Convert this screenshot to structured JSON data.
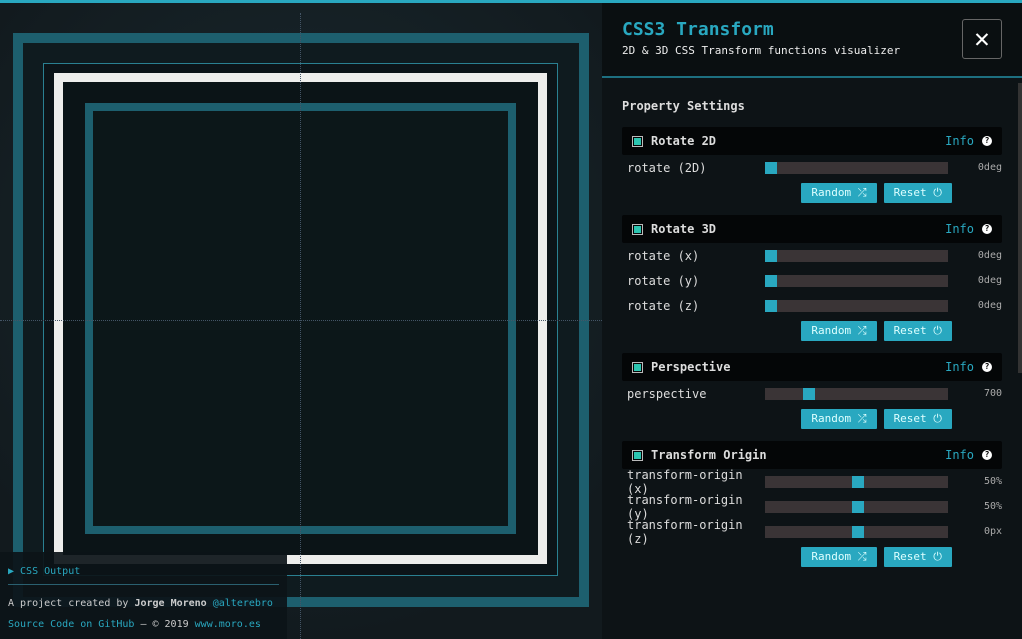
{
  "panel": {
    "title": "CSS3 Transform",
    "subtitle": "2D & 3D CSS Transform functions visualizer",
    "close": "✕",
    "settings_title": "Property Settings"
  },
  "sections": [
    {
      "title": "Rotate 2D",
      "info": "Info",
      "rows": [
        {
          "label": "rotate (2D)",
          "value": "0deg",
          "fraction": 0
        }
      ],
      "random": "Random ⤮",
      "reset": "Reset ⏻"
    },
    {
      "title": "Rotate 3D",
      "info": "Info",
      "rows": [
        {
          "label": "rotate (x)",
          "value": "0deg",
          "fraction": 0
        },
        {
          "label": "rotate (y)",
          "value": "0deg",
          "fraction": 0
        },
        {
          "label": "rotate (z)",
          "value": "0deg",
          "fraction": 0
        }
      ],
      "random": "Random ⤮",
      "reset": "Reset ⏻"
    },
    {
      "title": "Perspective",
      "info": "Info",
      "rows": [
        {
          "label": "perspective",
          "value": "700",
          "fraction": 0.22
        }
      ],
      "random": "Random ⤮",
      "reset": "Reset ⏻"
    },
    {
      "title": "Transform Origin",
      "info": "Info",
      "rows": [
        {
          "label": "transform-origin (x)",
          "value": "50%",
          "fraction": 0.5
        },
        {
          "label": "transform-origin (y)",
          "value": "50%",
          "fraction": 0.5
        },
        {
          "label": "transform-origin (z)",
          "value": "0px",
          "fraction": 0.5
        }
      ],
      "random": "Random ⤮",
      "reset": "Reset ⏻"
    }
  ],
  "footer": {
    "css_output": "▶ CSS Output",
    "credit_prefix": "A project created by",
    "author": "Jorge Moreno",
    "handle": "@alterebro",
    "source": "Source Code on GitHub",
    "copyright": " — © 2019 ",
    "site": "www.moro.es"
  }
}
